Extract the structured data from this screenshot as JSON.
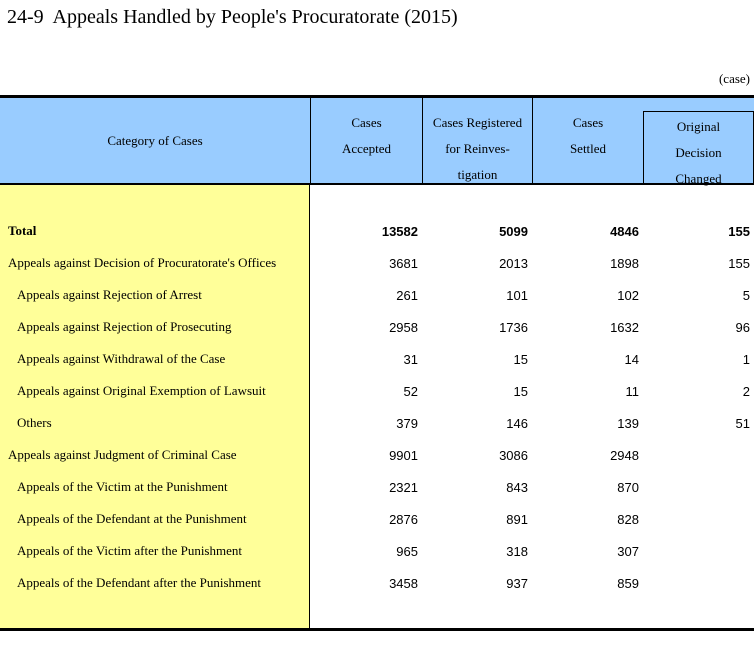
{
  "title": "24-9  Appeals Handled by People's Procuratorate (2015)",
  "unit_note": "(case)",
  "colors": {
    "header_bg": "#99CCFF",
    "stub_bg": "#FFFF99",
    "border": "#000000"
  },
  "table": {
    "header": {
      "category": "Category of Cases",
      "accepted": "Cases\nAccepted",
      "registered": "Cases Registered\nfor Reinves-\ntigation",
      "settled": "Cases\nSettled",
      "changed": "Original\nDecision\nChanged"
    },
    "rows": [
      {
        "label": "Total",
        "accepted": "13582",
        "registered": "5099",
        "settled": "4846",
        "changed": "155"
      },
      {
        "label": "Appeals against Decision of Procuratorate's Offices",
        "accepted": "3681",
        "registered": "2013",
        "settled": "1898",
        "changed": "155"
      },
      {
        "label": "Appeals against Rejection of Arrest",
        "accepted": "261",
        "registered": "101",
        "settled": "102",
        "changed": "5"
      },
      {
        "label": "Appeals against Rejection of Prosecuting",
        "accepted": "2958",
        "registered": "1736",
        "settled": "1632",
        "changed": "96"
      },
      {
        "label": "Appeals against Withdrawal of the Case",
        "accepted": "31",
        "registered": "15",
        "settled": "14",
        "changed": "1"
      },
      {
        "label": "Appeals against Original Exemption of Lawsuit",
        "accepted": "52",
        "registered": "15",
        "settled": "11",
        "changed": "2"
      },
      {
        "label": "Others",
        "accepted": "379",
        "registered": "146",
        "settled": "139",
        "changed": "51"
      },
      {
        "label": "Appeals against Judgment of Criminal Case",
        "accepted": "9901",
        "registered": "3086",
        "settled": "2948",
        "changed": ""
      },
      {
        "label": "Appeals of the Victim at the Punishment",
        "accepted": "2321",
        "registered": "843",
        "settled": "870",
        "changed": ""
      },
      {
        "label": "Appeals of the Defendant at the Punishment",
        "accepted": "2876",
        "registered": "891",
        "settled": "828",
        "changed": ""
      },
      {
        "label": "Appeals of the Victim after the Punishment",
        "accepted": "965",
        "registered": "318",
        "settled": "307",
        "changed": ""
      },
      {
        "label": "Appeals of the Defendant after the Punishment",
        "accepted": "3458",
        "registered": "937",
        "settled": "859",
        "changed": ""
      }
    ]
  }
}
